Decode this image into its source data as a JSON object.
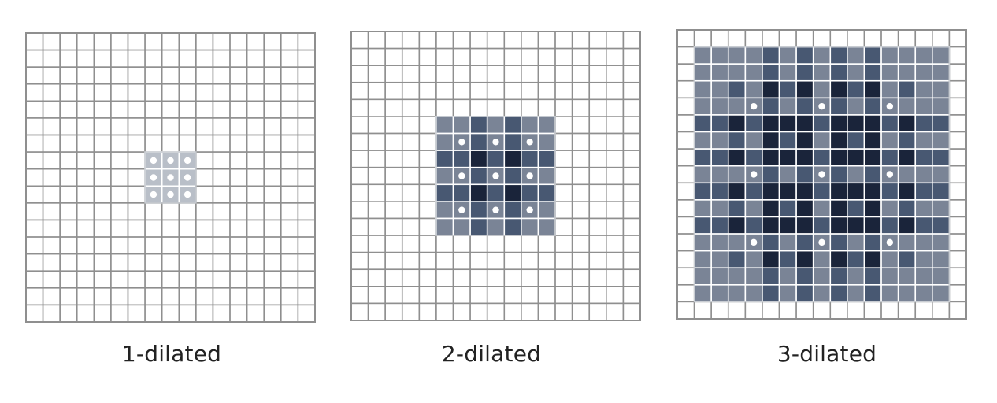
{
  "colors": {
    "background": "#ffffff",
    "grid_line": "#8f8f8f",
    "inner_line": "#ffffff",
    "dot": "#ffffff",
    "shade_levels": [
      "#ffffff",
      "#7a8496",
      "#485872",
      "#1a243a"
    ],
    "shade_1_dilated": "#b9bfc8"
  },
  "panels": [
    {
      "id": "1-dilated",
      "label": "1-dilated",
      "dilation": 1
    },
    {
      "id": "2-dilated",
      "label": "2-dilated",
      "dilation": 2
    },
    {
      "id": "3-dilated",
      "label": "3-dilated",
      "dilation": 3
    }
  ],
  "grid": {
    "rows": 17,
    "cols": 17
  }
}
